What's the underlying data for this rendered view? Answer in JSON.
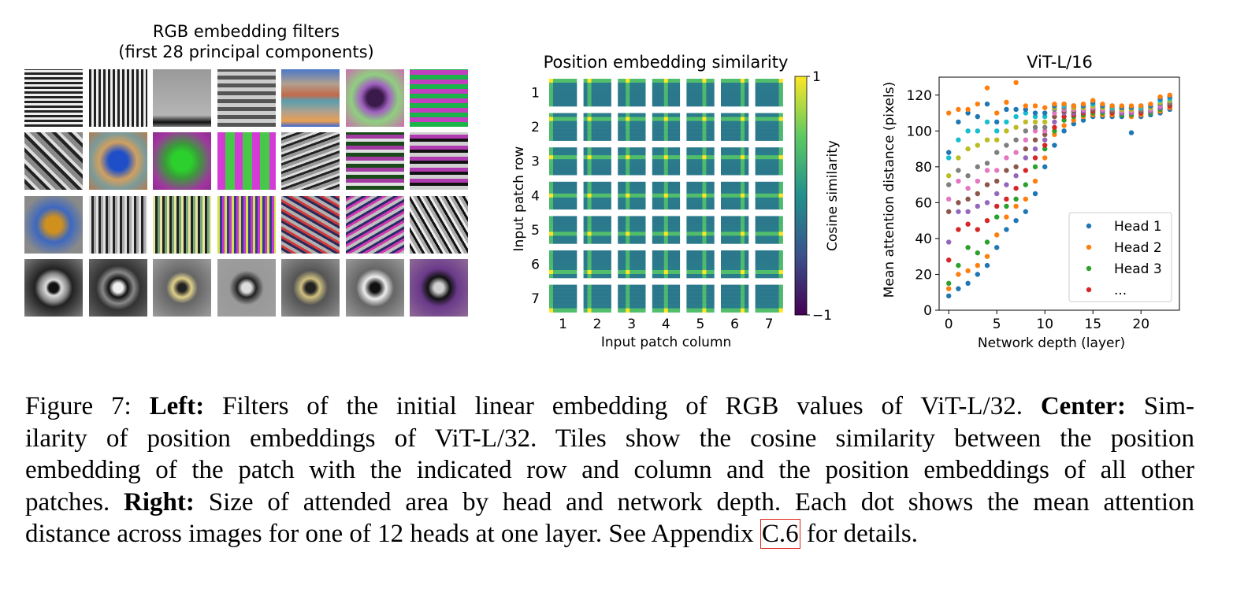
{
  "left_panel": {
    "title_line1": "RGB embedding filters",
    "title_line2": "(first 28 principal components)",
    "rows": 4,
    "cols": 7
  },
  "center_panel": {
    "title": "Position embedding similarity",
    "ylabel": "Input patch row",
    "xlabel": "Input patch column",
    "row_ticks": [
      "1",
      "2",
      "3",
      "4",
      "5",
      "6",
      "7"
    ],
    "col_ticks": [
      "1",
      "2",
      "3",
      "4",
      "5",
      "6",
      "7"
    ],
    "colorbar_label": "Cosine similarity",
    "colorbar_max": "1",
    "colorbar_min": "−1",
    "colormap": [
      "#440154",
      "#3b528b",
      "#21908d",
      "#5dc963",
      "#fde725"
    ]
  },
  "chart_data": {
    "type": "scatter",
    "title": "ViT-L/16",
    "xlabel": "Network depth (layer)",
    "ylabel": "Mean attention distance (pixels)",
    "xlim": [
      -1,
      24
    ],
    "ylim": [
      0,
      130
    ],
    "xticks": [
      "0",
      "5",
      "10",
      "15",
      "20"
    ],
    "yticks": [
      "0",
      "20",
      "40",
      "60",
      "80",
      "100",
      "120"
    ],
    "legend": [
      {
        "name": "Head 1",
        "color": "#1f77b4"
      },
      {
        "name": "Head 2",
        "color": "#ff7f0e"
      },
      {
        "name": "Head 3",
        "color": "#2ca02c"
      },
      {
        "name": "...",
        "color": "#d62728"
      }
    ],
    "legend_position": "lower-right",
    "palette": [
      "#1f77b4",
      "#ff7f0e",
      "#2ca02c",
      "#d62728",
      "#9467bd",
      "#8c564b",
      "#e377c2",
      "#7f7f7f",
      "#bcbd22",
      "#17becf",
      "#1f77b4",
      "#ff7f0e"
    ],
    "layers": [
      [
        8,
        12,
        15,
        28,
        38,
        55,
        62,
        70,
        75,
        85,
        88,
        110
      ],
      [
        12,
        20,
        25,
        45,
        55,
        60,
        72,
        78,
        85,
        95,
        105,
        112
      ],
      [
        15,
        22,
        35,
        48,
        55,
        62,
        68,
        75,
        90,
        100,
        110,
        112
      ],
      [
        20,
        25,
        32,
        45,
        58,
        65,
        72,
        80,
        92,
        100,
        108,
        115
      ],
      [
        25,
        30,
        38,
        50,
        60,
        70,
        78,
        82,
        95,
        105,
        115,
        124
      ],
      [
        35,
        42,
        52,
        58,
        65,
        72,
        78,
        88,
        95,
        100,
        105,
        110
      ],
      [
        45,
        52,
        58,
        62,
        70,
        78,
        85,
        92,
        100,
        105,
        112,
        116
      ],
      [
        50,
        58,
        62,
        68,
        75,
        80,
        88,
        95,
        102,
        108,
        112,
        127
      ],
      [
        55,
        62,
        70,
        78,
        85,
        90,
        95,
        100,
        105,
        110,
        112,
        114
      ],
      [
        65,
        72,
        80,
        85,
        90,
        95,
        100,
        102,
        105,
        108,
        110,
        114
      ],
      [
        80,
        85,
        90,
        92,
        95,
        98,
        100,
        102,
        105,
        108,
        110,
        113
      ],
      [
        92,
        98,
        100,
        102,
        105,
        108,
        110,
        112,
        113,
        114,
        114,
        115
      ],
      [
        100,
        103,
        106,
        108,
        110,
        111,
        112,
        113,
        114,
        114,
        115,
        115
      ],
      [
        104,
        106,
        108,
        109,
        110,
        111,
        112,
        113,
        113,
        114,
        114,
        114
      ],
      [
        106,
        108,
        109,
        110,
        111,
        112,
        112,
        113,
        113,
        114,
        114,
        115
      ],
      [
        108,
        109,
        110,
        111,
        112,
        112,
        113,
        114,
        114,
        115,
        116,
        117
      ],
      [
        108,
        109,
        110,
        111,
        111,
        112,
        112,
        113,
        113,
        114,
        114,
        115
      ],
      [
        108,
        109,
        110,
        110,
        111,
        111,
        112,
        112,
        113,
        113,
        114,
        114
      ],
      [
        108,
        109,
        109,
        110,
        110,
        111,
        111,
        112,
        112,
        113,
        113,
        114
      ],
      [
        99,
        108,
        109,
        110,
        110,
        111,
        111,
        112,
        112,
        113,
        113,
        114
      ],
      [
        108,
        109,
        110,
        110,
        111,
        111,
        112,
        112,
        113,
        113,
        114,
        114
      ],
      [
        109,
        110,
        110,
        111,
        111,
        112,
        112,
        113,
        113,
        114,
        114,
        115
      ],
      [
        110,
        111,
        112,
        113,
        113,
        114,
        114,
        115,
        116,
        117,
        118,
        119
      ],
      [
        112,
        113,
        114,
        114,
        115,
        115,
        116,
        116,
        117,
        118,
        119,
        120
      ]
    ]
  },
  "caption": {
    "line1_a": "Figure 7:   ",
    "line1_b": "Left:",
    "line1_c": " Filters of the initial linear embedding of RGB values of ViT-L/32. ",
    "line1_d": "Center:",
    "line1_e": " Sim-",
    "line2": "ilarity of position embeddings of ViT-L/32. Tiles show the cosine similarity between the position",
    "line3": "embedding of the patch with the indicated row and column and the position embeddings of all other",
    "line4_a": "patches. ",
    "line4_b": "Right:",
    "line4_c": " Size of attended area by head and network depth. Each dot shows the mean attention",
    "line5_a": "distance across images for one of 12 heads at one layer. See Appendix ",
    "line5_ref": "C.6",
    "line5_b": " for details."
  }
}
